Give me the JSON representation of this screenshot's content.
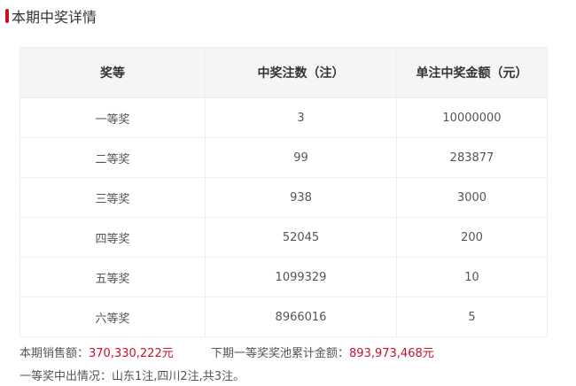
{
  "title": "本期中奖详情",
  "headers": [
    "奖等",
    "中奖注数（注）",
    "单注中奖金额（元）"
  ],
  "rows": [
    [
      "一等奖",
      "3",
      "10000000"
    ],
    [
      "二等奖",
      "99",
      "283877"
    ],
    [
      "三等奖",
      "938",
      "3000"
    ],
    [
      "四等奖",
      "52045",
      "200"
    ],
    [
      "五等奖",
      "1099329",
      "10"
    ],
    [
      "六等奖",
      "8966016",
      "5"
    ]
  ],
  "sales_label": "本期销售额：",
  "sales_value": "370,330,222元",
  "pool_label": "下期一等奖奖池累计金额：",
  "pool_value": "893,973,468元",
  "winners": "一等奖中出情况：山东1注,四川2注,共3注。",
  "colors": {
    "accent": "#c8102e"
  }
}
